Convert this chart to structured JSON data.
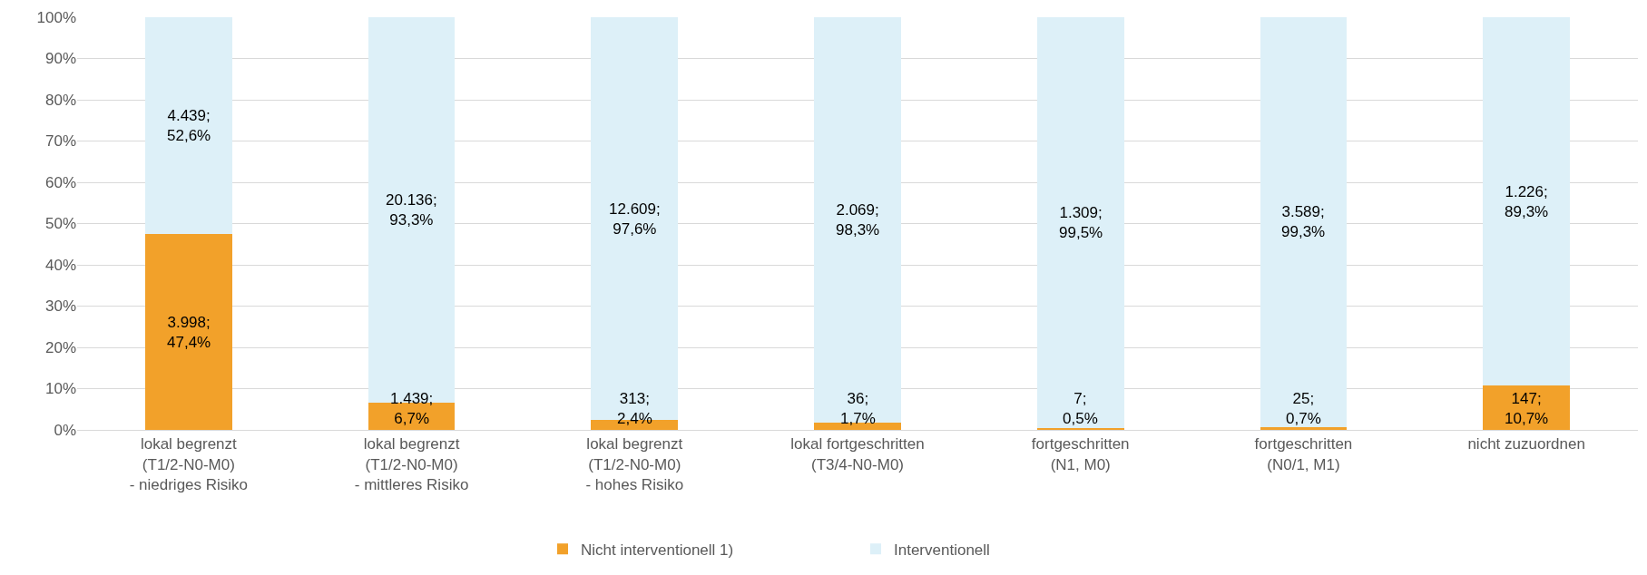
{
  "chart_data": {
    "type": "bar",
    "stacked": true,
    "categories": [
      "lokal begrenzt\n(T1/2-N0-M0)\n- niedriges Risiko",
      "lokal begrenzt\n(T1/2-N0-M0)\n- mittleres Risiko",
      "lokal begrenzt\n(T1/2-N0-M0)\n- hohes Risiko",
      "lokal fortgeschritten\n(T3/4-N0-M0)",
      "fortgeschritten\n(N1, M0)",
      "fortgeschritten\n(N0/1, M1)",
      "nicht zuzuordnen"
    ],
    "series": [
      {
        "name": "Nicht interventionell 1)",
        "color": "#f2a12a",
        "values": [
          47.4,
          6.7,
          2.4,
          1.7,
          0.5,
          0.7,
          10.7
        ],
        "value_labels": [
          "3.998;\n47,4%",
          "1.439;\n6,7%",
          "313;\n2,4%",
          "36;\n1,7%",
          "7;\n0,5%",
          "25;\n0,7%",
          "147;\n10,7%"
        ]
      },
      {
        "name": "Interventionell",
        "color": "#ddf0f8",
        "values": [
          52.6,
          93.3,
          97.6,
          98.3,
          99.5,
          99.3,
          89.3
        ],
        "value_labels": [
          "4.439;\n52,6%",
          "20.136;\n93,3%",
          "12.609;\n97,6%",
          "2.069;\n98,3%",
          "1.309;\n99,5%",
          "3.589;\n99,3%",
          "1.226;\n89,3%"
        ]
      }
    ],
    "ylim": [
      0,
      100
    ],
    "yticks": [
      {
        "value": 0,
        "label": "0%"
      },
      {
        "value": 10,
        "label": "10%"
      },
      {
        "value": 20,
        "label": "20%"
      },
      {
        "value": 30,
        "label": "30%"
      },
      {
        "value": 40,
        "label": "40%"
      },
      {
        "value": 50,
        "label": "50%"
      },
      {
        "value": 60,
        "label": "60%"
      },
      {
        "value": 70,
        "label": "70%"
      },
      {
        "value": 80,
        "label": "80%"
      },
      {
        "value": 90,
        "label": "90%"
      },
      {
        "value": 100,
        "label": "100%"
      }
    ],
    "grid": "y",
    "legend": "bottom"
  }
}
